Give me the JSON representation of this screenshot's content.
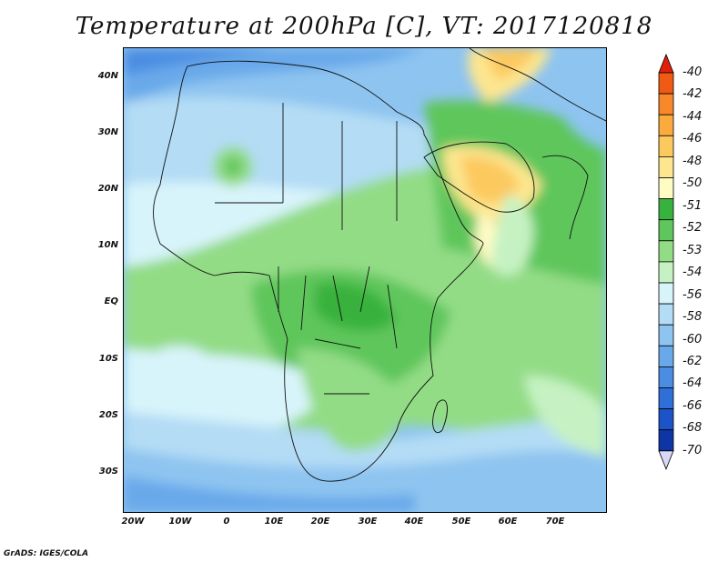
{
  "title": "Temperature at 200hPa [C], VT: 2017120818",
  "footer": "GrADS: IGES/COLA",
  "axes": {
    "lat_labels": [
      "40N",
      "30N",
      "20N",
      "10N",
      "EQ",
      "10S",
      "20S",
      "30S"
    ],
    "lon_labels": [
      "20W",
      "10W",
      "0",
      "10E",
      "20E",
      "30E",
      "40E",
      "50E",
      "60E",
      "70E"
    ]
  },
  "colorbar": {
    "levels": [
      "-40",
      "-42",
      "-44",
      "-46",
      "-48",
      "-50",
      "-51",
      "-52",
      "-53",
      "-54",
      "-56",
      "-58",
      "-60",
      "-62",
      "-64",
      "-66",
      "-68",
      "-70"
    ],
    "colors": [
      "#e0200b",
      "#f05a14",
      "#f8892a",
      "#fbab3e",
      "#fcc95e",
      "#fde68f",
      "#fffbc5",
      "#37b23c",
      "#5ec65c",
      "#93dc86",
      "#c6f2c3",
      "#d8f4fb",
      "#b4dcf5",
      "#8ec4f0",
      "#69a9ea",
      "#4b8de2",
      "#2f6fd8",
      "#1d53c9",
      "#0d35a3",
      "#0a1d7a"
    ],
    "top_arrow_color": "#e0200b",
    "bottom_arrow_color": "#d8d8f8"
  }
}
